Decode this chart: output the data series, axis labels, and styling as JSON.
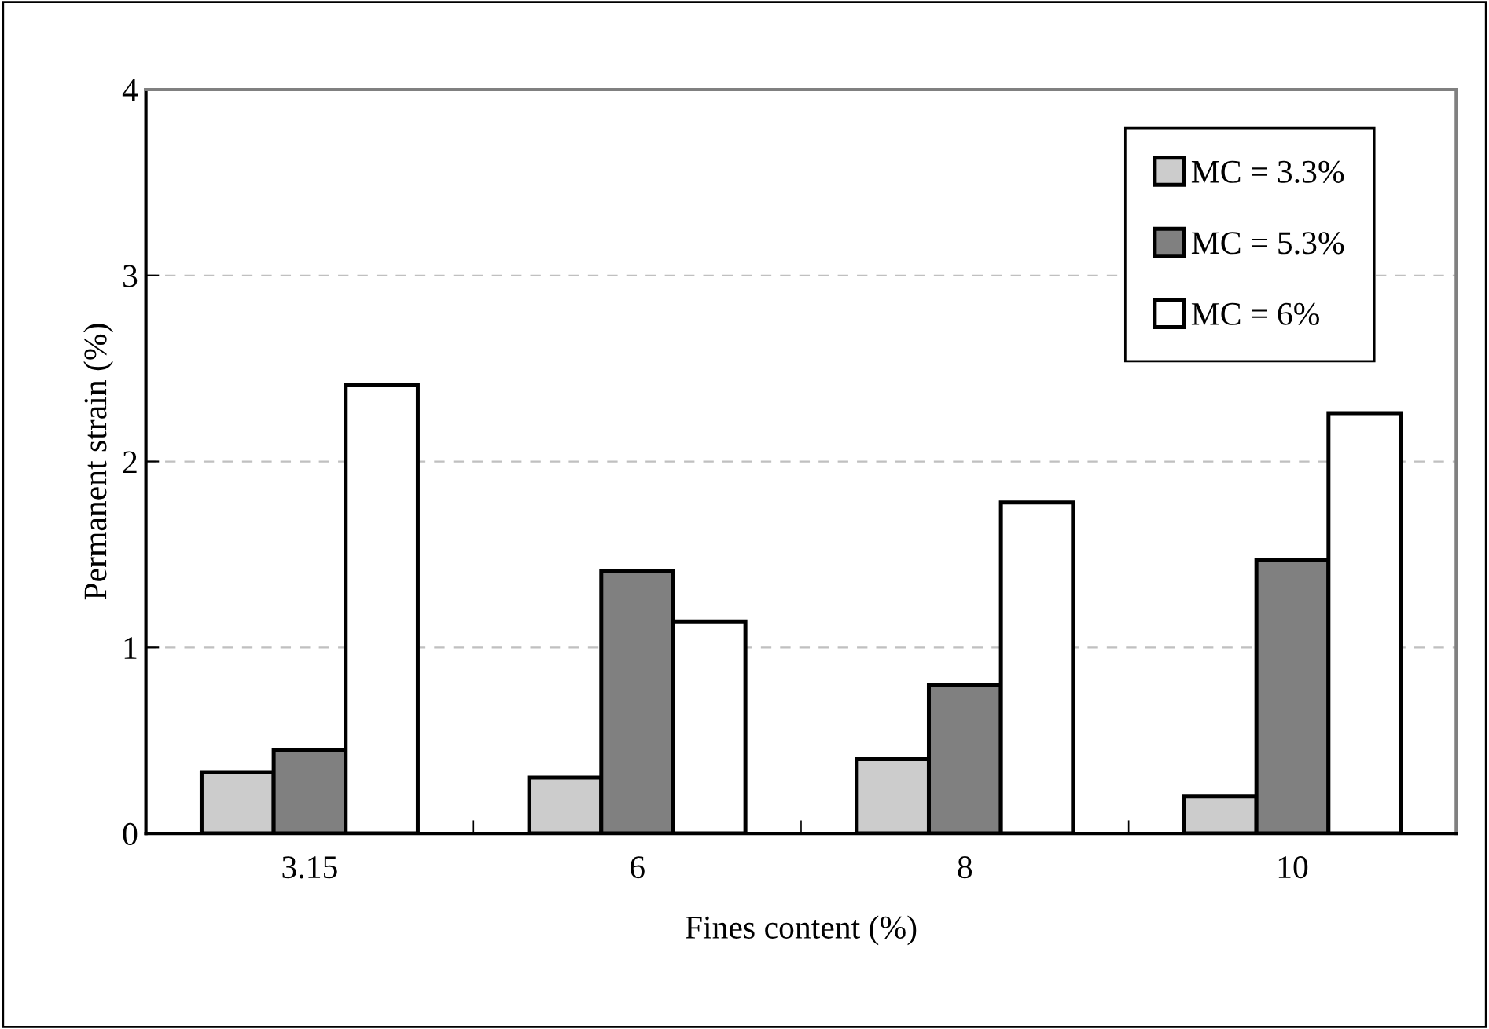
{
  "chart_data": {
    "type": "bar",
    "xlabel": "Fines content (%)",
    "ylabel": "Permanent strain (%)",
    "categories": [
      "3.15",
      "6",
      "8",
      "10"
    ],
    "series": [
      {
        "name": "MC = 3.3%",
        "color": "#cccccc",
        "values": [
          0.33,
          0.3,
          0.4,
          0.2
        ]
      },
      {
        "name": "MC = 5.3%",
        "color": "#808080",
        "values": [
          0.45,
          1.41,
          0.8,
          1.47
        ]
      },
      {
        "name": "MC = 6%",
        "color": "#ffffff",
        "values": [
          2.41,
          1.14,
          1.78,
          2.26
        ]
      }
    ],
    "ylim": [
      0,
      4
    ],
    "yticks": [
      0,
      1,
      2,
      3,
      4
    ],
    "grid": "y",
    "legend": "top right"
  }
}
